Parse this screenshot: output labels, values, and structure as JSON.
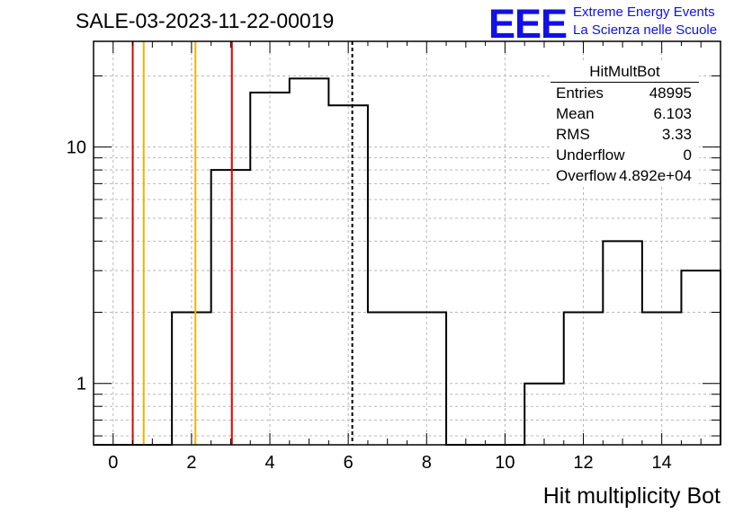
{
  "run_title": "SALE-03-2023-11-22-00019",
  "logo": {
    "mark": "EEE",
    "line1": "Extreme Energy Events",
    "line2": "La Scienza nelle Scuole",
    "color": "#1010e8"
  },
  "stats_box": {
    "title": "HitMultBot",
    "rows": [
      {
        "key": "Entries",
        "value": "48995"
      },
      {
        "key": "Mean",
        "value": "6.103"
      },
      {
        "key": "RMS",
        "value": "3.33"
      },
      {
        "key": "Underflow",
        "value": "0"
      },
      {
        "key": "Overflow",
        "value": "4.892e+04"
      }
    ]
  },
  "chart_data": {
    "type": "histogram",
    "xlabel": "Hit multiplicity Bot",
    "ylabel": "",
    "x_range": [
      -0.5,
      15.5
    ],
    "y_scale": "log",
    "y_range": [
      0.55,
      28
    ],
    "x_ticks": [
      0,
      2,
      4,
      6,
      8,
      10,
      12,
      14
    ],
    "y_tick_labels": [
      1,
      10
    ],
    "grid": true,
    "bins": [
      {
        "low": -0.5,
        "high": 0.5,
        "count": 0
      },
      {
        "low": 0.5,
        "high": 1.5,
        "count": 0
      },
      {
        "low": 1.5,
        "high": 2.5,
        "count": 2
      },
      {
        "low": 2.5,
        "high": 3.5,
        "count": 8
      },
      {
        "low": 3.5,
        "high": 4.5,
        "count": 17
      },
      {
        "low": 4.5,
        "high": 5.5,
        "count": 19.5
      },
      {
        "low": 5.5,
        "high": 6.5,
        "count": 15
      },
      {
        "low": 6.5,
        "high": 7.5,
        "count": 2
      },
      {
        "low": 7.5,
        "high": 8.5,
        "count": 2
      },
      {
        "low": 8.5,
        "high": 9.5,
        "count": 0
      },
      {
        "low": 9.5,
        "high": 10.5,
        "count": 0
      },
      {
        "low": 10.5,
        "high": 11.5,
        "count": 1
      },
      {
        "low": 11.5,
        "high": 12.5,
        "count": 2
      },
      {
        "low": 12.5,
        "high": 13.5,
        "count": 4
      },
      {
        "low": 13.5,
        "high": 14.5,
        "count": 2
      },
      {
        "low": 14.5,
        "high": 15.5,
        "count": 3
      }
    ],
    "vertical_lines": [
      {
        "x": 0.5,
        "color": "#e00000",
        "style": "solid"
      },
      {
        "x": 0.78,
        "color": "#f0b400",
        "style": "solid"
      },
      {
        "x": 2.1,
        "color": "#f0b400",
        "style": "solid"
      },
      {
        "x": 3.03,
        "color": "#e00000",
        "style": "solid"
      },
      {
        "x": 6.103,
        "color": "#000000",
        "style": "dashed"
      }
    ]
  }
}
